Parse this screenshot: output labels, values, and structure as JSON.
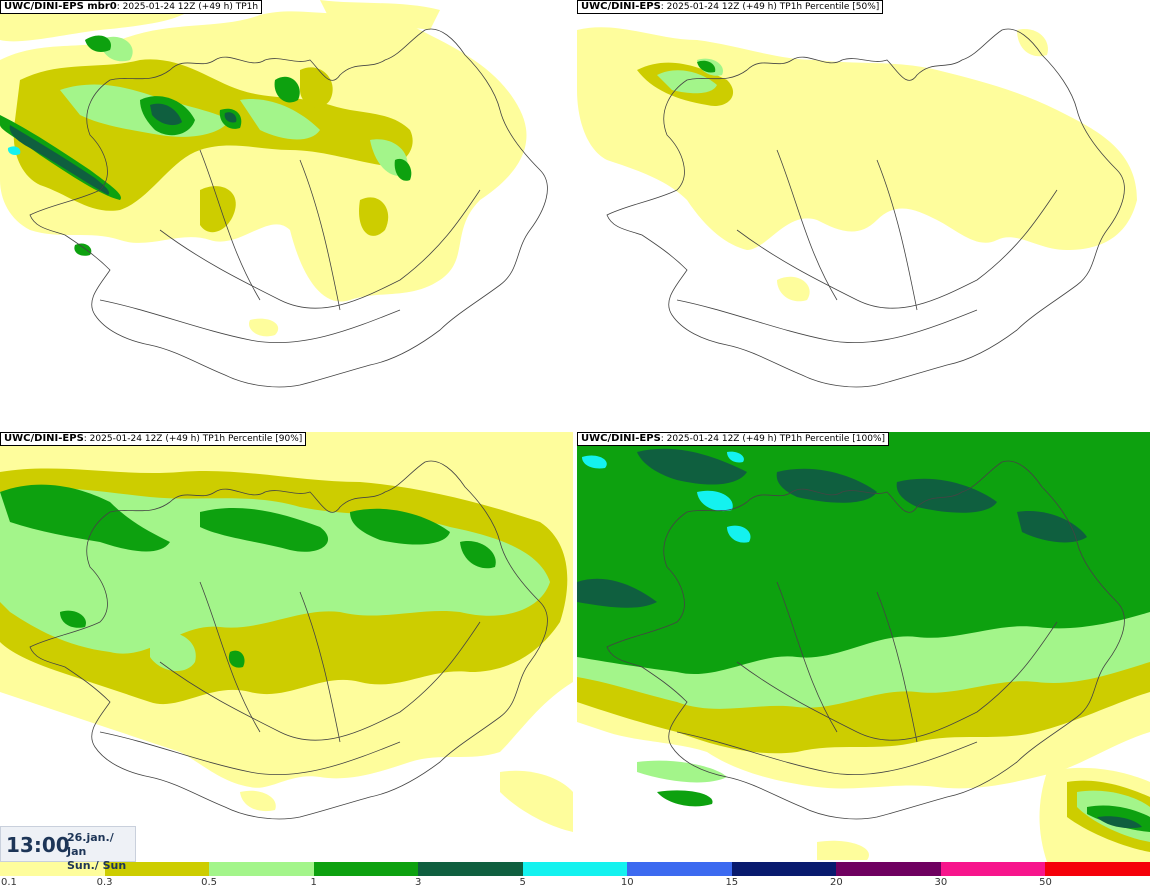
{
  "panels": [
    {
      "model": "UWC/DINI-EPS mbr0",
      "run": "2025-01-24 12Z (+49 h)",
      "field": "TP1h"
    },
    {
      "model": "UWC/DINI-EPS",
      "run": "2025-01-24 12Z (+49 h)",
      "field": "TP1h Percentile [50%]"
    },
    {
      "model": "UWC/DINI-EPS",
      "run": "2025-01-24 12Z (+49 h)",
      "field": "TP1h Percentile [90%]"
    },
    {
      "model": "UWC/DINI-EPS",
      "run": "2025-01-24 12Z (+49 h)",
      "field": "TP1h Percentile [100%]"
    }
  ],
  "clock": {
    "time": "13:00",
    "date_line1": "26.jan./ Jan",
    "date_line2": "Sun./ Sun"
  },
  "scale": {
    "labels": [
      "0.1",
      "0.3",
      "0.5",
      "1",
      "3",
      "5",
      "10",
      "15",
      "20",
      "30",
      "50"
    ],
    "colors": [
      "#fefd9c",
      "#cdcd00",
      "#a3f58a",
      "#0da10f",
      "#0f5f3f",
      "#14f2ef",
      "#3c6af0",
      "#081a6e",
      "#6f0060",
      "#f7158c",
      "#f5000a"
    ]
  },
  "legend_colors": {
    "lightyellow": "#fefd9c",
    "olive": "#cdcd00",
    "lightgreen": "#a3f58a",
    "green": "#0da10f",
    "darkgreen": "#0f5f3f",
    "cyan": "#14f2ef"
  }
}
